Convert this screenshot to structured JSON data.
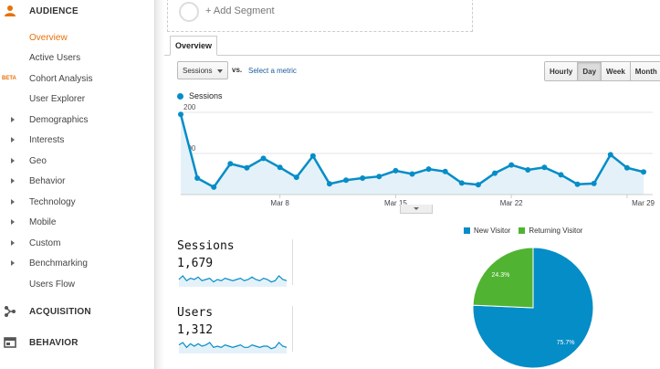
{
  "sidebar": {
    "audience": {
      "label": "AUDIENCE"
    },
    "items": [
      {
        "label": "Overview",
        "active": true
      },
      {
        "label": "Active Users"
      },
      {
        "label": "Cohort Analysis",
        "badge": "BETA"
      },
      {
        "label": "User Explorer"
      },
      {
        "label": "Demographics",
        "expandable": true
      },
      {
        "label": "Interests",
        "expandable": true
      },
      {
        "label": "Geo",
        "expandable": true
      },
      {
        "label": "Behavior",
        "expandable": true
      },
      {
        "label": "Technology",
        "expandable": true
      },
      {
        "label": "Mobile",
        "expandable": true
      },
      {
        "label": "Custom",
        "expandable": true
      },
      {
        "label": "Benchmarking",
        "expandable": true
      },
      {
        "label": "Users Flow"
      }
    ],
    "acquisition": {
      "label": "ACQUISITION"
    },
    "behavior": {
      "label": "BEHAVIOR"
    },
    "accent_color": "#e8710a"
  },
  "segment": {
    "add_label": "+ Add Segment"
  },
  "tabs": {
    "overview": "Overview"
  },
  "controls": {
    "metric_select": "Sessions",
    "vs_label": "vs.",
    "select_metric": "Select a metric",
    "periods": [
      {
        "label": "Hourly"
      },
      {
        "label": "Day",
        "active": true
      },
      {
        "label": "Week"
      },
      {
        "label": "Month"
      }
    ]
  },
  "chart_data": [
    {
      "type": "area",
      "series": [
        {
          "name": "Sessions",
          "color": "#058dc7",
          "values": [
            195,
            40,
            18,
            75,
            65,
            88,
            66,
            42,
            94,
            26,
            35,
            40,
            44,
            58,
            50,
            62,
            56,
            28,
            24,
            52,
            72,
            60,
            66,
            48,
            25,
            27,
            97,
            65,
            55
          ]
        }
      ],
      "x_ticks": [
        "Mar 8",
        "Mar 15",
        "Mar 22",
        "Mar 29"
      ],
      "y_ticks": [
        "100",
        "200"
      ],
      "ylim": [
        0,
        220
      ],
      "grid": true
    },
    {
      "type": "pie",
      "series": [
        {
          "values": [
            75.7,
            24.3
          ]
        }
      ],
      "categories": [
        "New Visitor",
        "Returning Visitor"
      ],
      "colors": [
        "#058dc7",
        "#50b432"
      ],
      "labels": [
        "75.7%",
        "24.3%"
      ],
      "legend": "top"
    }
  ],
  "metrics": [
    {
      "title": "Sessions",
      "value": "1,679",
      "spark": [
        6,
        9,
        5,
        7,
        6,
        8,
        5,
        6,
        7,
        4,
        6,
        5,
        7,
        6,
        5,
        6,
        7,
        5,
        6,
        8,
        6,
        5,
        7,
        6,
        4,
        5,
        9,
        6,
        5
      ]
    },
    {
      "title": "Users",
      "value": "1,312",
      "spark": [
        7,
        9,
        5,
        8,
        6,
        8,
        6,
        7,
        9,
        5,
        6,
        5,
        7,
        6,
        5,
        6,
        7,
        5,
        5,
        7,
        6,
        5,
        6,
        6,
        4,
        5,
        9,
        6,
        5
      ]
    }
  ]
}
